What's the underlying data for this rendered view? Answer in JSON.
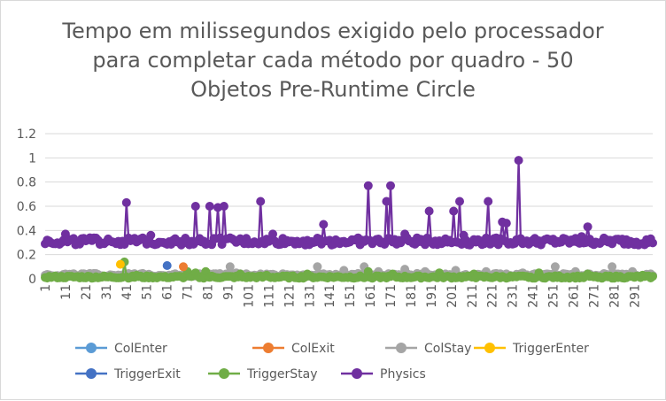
{
  "chart_data": {
    "type": "line",
    "title": "Tempo em milissegundos exigido pelo processador para completar cada método por quadro - 50 Objetos Pre-Runtime Circle",
    "xlabel": "",
    "ylabel": "",
    "ylim": [
      0,
      1.2
    ],
    "yticks": [
      "0",
      "0.2",
      "0.4",
      "0.6",
      "0.8",
      "1",
      "1.2"
    ],
    "xtick_labels": [
      "1",
      "11",
      "21",
      "31",
      "41",
      "51",
      "61",
      "71",
      "81",
      "91",
      "101",
      "111",
      "121",
      "131",
      "141",
      "151",
      "161",
      "171",
      "181",
      "191",
      "201",
      "211",
      "221",
      "231",
      "241",
      "251",
      "261",
      "271",
      "281",
      "291"
    ],
    "x_range": [
      1,
      300
    ],
    "grid": "horizontal",
    "legend_position": "bottom",
    "series": [
      {
        "name": "ColEnter",
        "color": "#5b9bd5",
        "base": 0.0,
        "spikes": []
      },
      {
        "name": "ColExit",
        "color": "#ed7d31",
        "base": 0.0,
        "spikes": [
          [
            69,
            0.1
          ]
        ]
      },
      {
        "name": "ColStay",
        "color": "#a5a5a5",
        "base": 0.02,
        "spikes": [
          [
            1,
            0.03
          ],
          [
            8,
            0.02
          ],
          [
            31,
            0.02
          ],
          [
            92,
            0.1
          ],
          [
            95,
            0.05
          ],
          [
            135,
            0.1
          ],
          [
            148,
            0.07
          ],
          [
            158,
            0.1
          ],
          [
            165,
            0.06
          ],
          [
            178,
            0.08
          ],
          [
            188,
            0.06
          ],
          [
            203,
            0.07
          ],
          [
            218,
            0.06
          ],
          [
            236,
            0.05
          ],
          [
            252,
            0.1
          ],
          [
            262,
            0.06
          ],
          [
            280,
            0.1
          ],
          [
            290,
            0.06
          ]
        ]
      },
      {
        "name": "TriggerEnter",
        "color": "#ffc000",
        "base": 0.0,
        "spikes": [
          [
            38,
            0.12
          ]
        ]
      },
      {
        "name": "TriggerExit",
        "color": "#4472c4",
        "base": 0.0,
        "spikes": [
          [
            61,
            0.11
          ]
        ]
      },
      {
        "name": "TriggerStay",
        "color": "#70ad47",
        "base": 0.01,
        "spikes": [
          [
            40,
            0.14
          ],
          [
            46,
            0.03
          ],
          [
            60,
            0.02
          ],
          [
            71,
            0.06
          ],
          [
            75,
            0.05
          ],
          [
            80,
            0.06
          ],
          [
            97,
            0.04
          ],
          [
            110,
            0.03
          ],
          [
            130,
            0.04
          ],
          [
            160,
            0.06
          ],
          [
            172,
            0.04
          ],
          [
            195,
            0.05
          ],
          [
            212,
            0.04
          ],
          [
            244,
            0.05
          ],
          [
            268,
            0.04
          ],
          [
            295,
            0.03
          ]
        ]
      },
      {
        "name": "Physics",
        "color": "#7030a0",
        "base": 0.3,
        "spikes": [
          [
            11,
            0.37
          ],
          [
            32,
            0.33
          ],
          [
            41,
            0.63
          ],
          [
            53,
            0.36
          ],
          [
            75,
            0.6
          ],
          [
            82,
            0.6
          ],
          [
            86,
            0.59
          ],
          [
            89,
            0.6
          ],
          [
            107,
            0.64
          ],
          [
            113,
            0.37
          ],
          [
            138,
            0.45
          ],
          [
            160,
            0.77
          ],
          [
            169,
            0.64
          ],
          [
            171,
            0.77
          ],
          [
            178,
            0.37
          ],
          [
            190,
            0.56
          ],
          [
            202,
            0.56
          ],
          [
            205,
            0.64
          ],
          [
            207,
            0.36
          ],
          [
            219,
            0.64
          ],
          [
            226,
            0.47
          ],
          [
            228,
            0.46
          ],
          [
            234,
            0.98
          ],
          [
            265,
            0.35
          ],
          [
            268,
            0.43
          ]
        ]
      }
    ]
  }
}
